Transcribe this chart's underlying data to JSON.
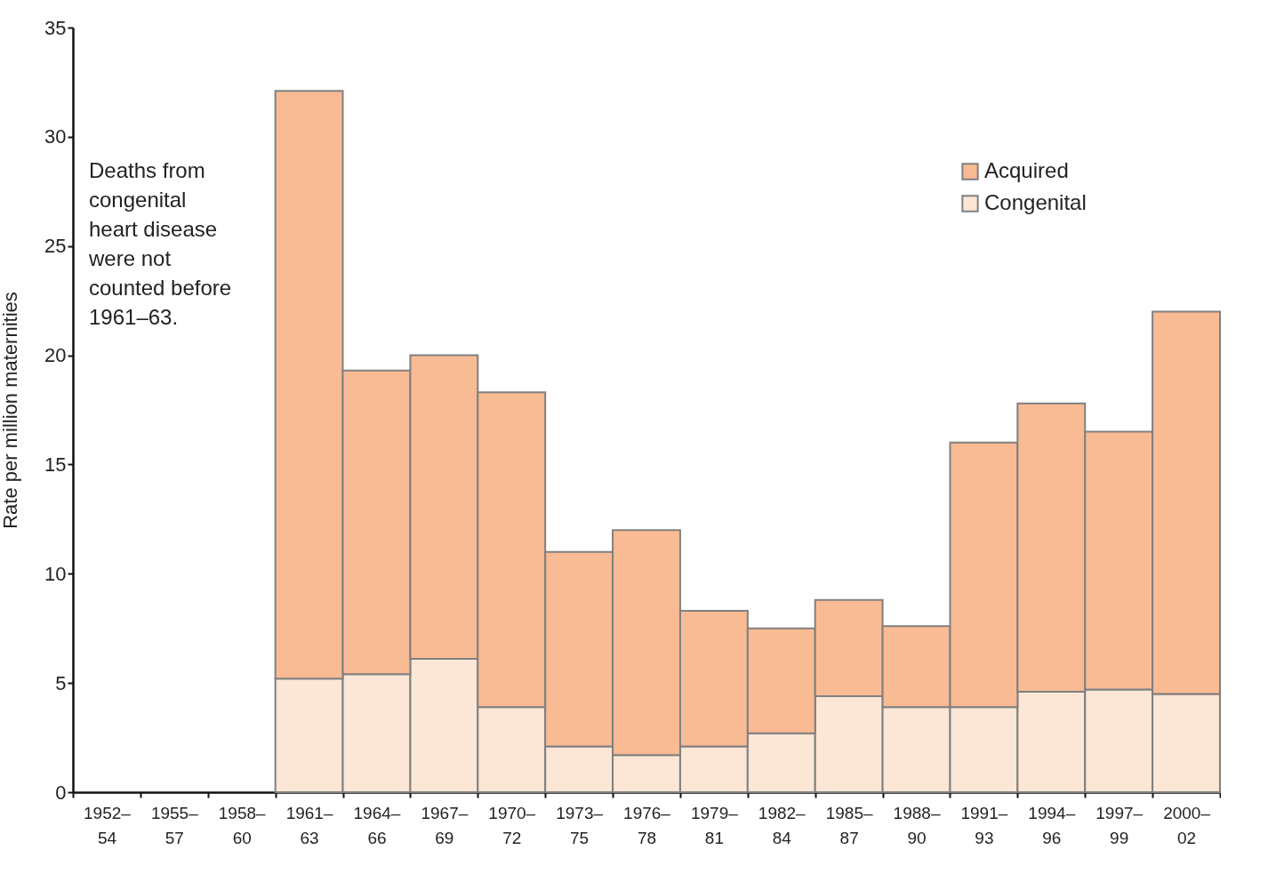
{
  "chart_data": {
    "type": "bar",
    "stacked": true,
    "ylabel": "Rate per million maternities",
    "categories": [
      "1952–\n54",
      "1955–\n57",
      "1958–\n60",
      "1961–\n63",
      "1964–\n66",
      "1967–\n69",
      "1970–\n72",
      "1973–\n75",
      "1976–\n78",
      "1979–\n81",
      "1982–\n84",
      "1985–\n87",
      "1988–\n90",
      "1991–\n93",
      "1994–\n96",
      "1997–\n99",
      "2000–\n02"
    ],
    "series": [
      {
        "name": "Congenital",
        "color": "#fce6d5",
        "values": [
          null,
          null,
          null,
          5.2,
          5.4,
          6.1,
          3.9,
          2.1,
          1.7,
          2.1,
          2.7,
          4.4,
          3.9,
          3.9,
          4.6,
          4.7,
          4.5
        ]
      },
      {
        "name": "Acquired",
        "color": "#f9bb94",
        "values": [
          null,
          null,
          null,
          26.9,
          13.9,
          13.9,
          14.4,
          8.9,
          10.3,
          6.2,
          4.8,
          4.4,
          3.7,
          12.1,
          13.2,
          11.8,
          17.5
        ]
      }
    ],
    "ylim": [
      0,
      35
    ],
    "yticks": [
      0,
      5,
      10,
      15,
      20,
      25,
      30,
      35
    ],
    "grid": false,
    "legend": "top right",
    "annotations": [
      "Deaths from\ncongenital\nheart disease\nwere not\ncounted before\n1961–63."
    ]
  }
}
